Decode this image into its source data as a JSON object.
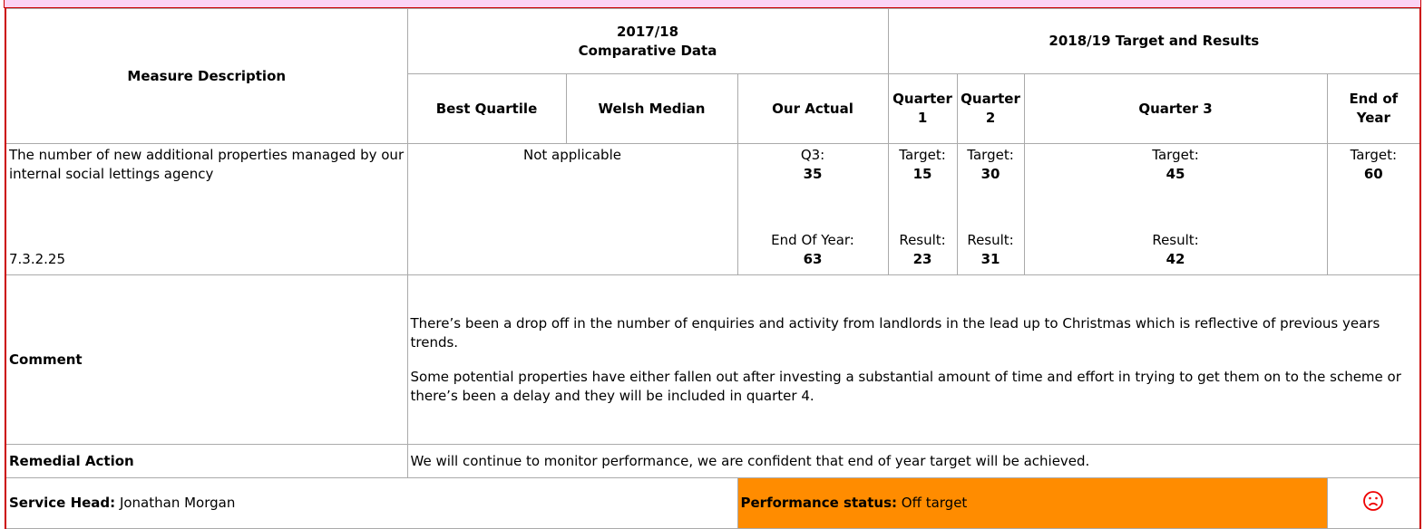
{
  "table": {
    "header": {
      "measure": "Measure Description",
      "comparative_year": "2017/18",
      "comparative_label": "Comparative Data",
      "target_title": "2018/19 Target and Results",
      "columns": [
        "Best Quartile",
        "Welsh Median",
        "Our Actual",
        "Quarter 1",
        "Quarter 2",
        "Quarter 3",
        "End of Year"
      ]
    },
    "measure": {
      "description": "The number of new additional properties managed by our internal social lettings agency",
      "code": "7.3.2.25",
      "comparative": "Not applicable",
      "actual": [
        {
          "label": "Q3:",
          "value": 35
        },
        {
          "label": "End Of Year:",
          "value": 63
        }
      ],
      "quarters": [
        {
          "target_label": "Target:",
          "target": 15,
          "result_label": "Result:",
          "result": 23
        },
        {
          "target_label": "Target:",
          "target": 30,
          "result_label": "Result:",
          "result": 31
        },
        {
          "target_label": "Target:",
          "target": 45,
          "result_label": "Result:",
          "result": 42
        },
        {
          "target_label": "Target:",
          "target": 60
        }
      ]
    },
    "comment": {
      "label": "Comment",
      "paragraphs": [
        "There’s been a drop off in the number of enquiries and activity from landlords in the lead up to Christmas which is reflective of previous years trends.",
        "Some potential properties have either fallen out after investing a substantial amount of time and effort in trying to get them on to the scheme or there’s been a delay and they will be included in quarter 4."
      ]
    },
    "remedial": {
      "label": "Remedial Action",
      "text": "We will continue to monitor performance, we are confident that end of year target will be achieved."
    },
    "footer": {
      "service_head_label": "Service Head:",
      "service_head": "Jonathan Morgan",
      "status_label": "Performance status:",
      "status": "Off target"
    }
  }
}
